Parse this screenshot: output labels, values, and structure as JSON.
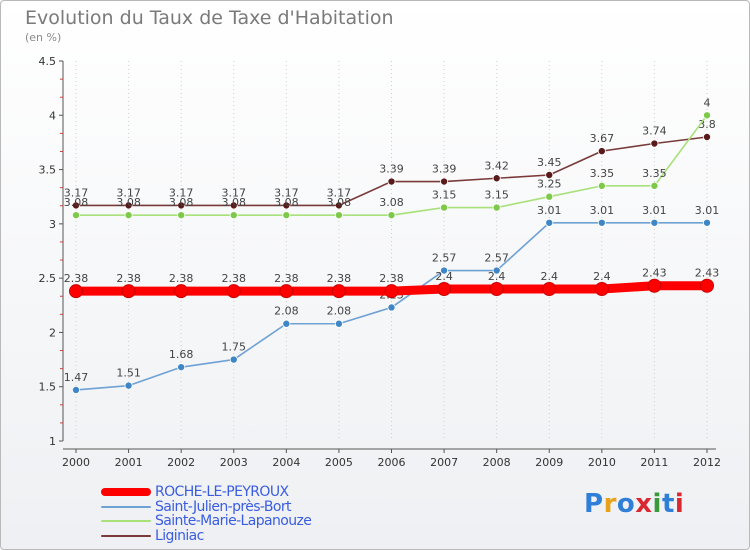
{
  "header": {
    "title": "Evolution du Taux de Taxe d'Habitation",
    "subtitle": "(en %)"
  },
  "logo": {
    "text": "Proxiti",
    "colors": [
      "#2f7fd8",
      "#e8a21a",
      "#2f7fd8",
      "#d9282f",
      "#3a9a3a",
      "#2f7fd8",
      "#d9282f"
    ]
  },
  "chart_data": {
    "type": "line",
    "title": "Evolution du Taux de Taxe d'Habitation",
    "subtitle": "(en %)",
    "xlabel": "",
    "ylabel": "",
    "x": [
      "2000",
      "2001",
      "2002",
      "2003",
      "2004",
      "2005",
      "2006",
      "2007",
      "2008",
      "2009",
      "2010",
      "2011",
      "2012"
    ],
    "ylim": [
      1,
      4.5
    ],
    "yticks": [
      "1",
      "1.5",
      "2",
      "2.5",
      "3",
      "3.5",
      "4",
      "4.5"
    ],
    "grid": "vertical dotted",
    "legend_position": "bottom-left",
    "series": [
      {
        "name": "ROCHE-LE-PEYROUX",
        "color": "#ff0000",
        "highlight": true,
        "values": [
          2.38,
          2.38,
          2.38,
          2.38,
          2.38,
          2.38,
          2.38,
          2.4,
          2.4,
          2.4,
          2.4,
          2.43,
          2.43
        ],
        "labels": [
          "2.38",
          "2.38",
          "2.38",
          "2.38",
          "2.38",
          "2.38",
          "2.38",
          "2.4",
          "2.4",
          "2.4",
          "2.4",
          "2.43",
          "2.43"
        ]
      },
      {
        "name": "Saint-Julien-près-Bort",
        "color": "#6ea1d4",
        "marker": "#3f86c6",
        "values": [
          1.47,
          1.51,
          1.68,
          1.75,
          2.08,
          2.08,
          2.23,
          2.57,
          2.57,
          3.01,
          3.01,
          3.01,
          3.01
        ],
        "labels": [
          "1.47",
          "1.51",
          "1.68",
          "1.75",
          "2.08",
          "2.08",
          "2.23",
          "2.57",
          "2.57",
          "3.01",
          "3.01",
          "3.01",
          "3.01"
        ]
      },
      {
        "name": "Sainte-Marie-Lapanouze",
        "color": "#a8e07a",
        "marker": "#7dc94a",
        "values": [
          3.08,
          3.08,
          3.08,
          3.08,
          3.08,
          3.08,
          3.08,
          3.15,
          3.15,
          3.25,
          3.35,
          3.35,
          4
        ],
        "labels": [
          "3.08",
          "3.08",
          "3.08",
          "3.08",
          "3.08",
          "3.08",
          "3.08",
          "3.15",
          "3.15",
          "3.25",
          "3.35",
          "3.35",
          "4"
        ]
      },
      {
        "name": "Liginiac",
        "color": "#7a3a3a",
        "marker": "#5a1a1a",
        "values": [
          3.17,
          3.17,
          3.17,
          3.17,
          3.17,
          3.17,
          3.39,
          3.39,
          3.42,
          3.45,
          3.67,
          3.74,
          3.8
        ],
        "labels": [
          "3.17",
          "3.17",
          "3.17",
          "3.17",
          "3.17",
          "3.17",
          "3.39",
          "3.39",
          "3.42",
          "3.45",
          "3.67",
          "3.74",
          "3.8"
        ]
      }
    ]
  }
}
